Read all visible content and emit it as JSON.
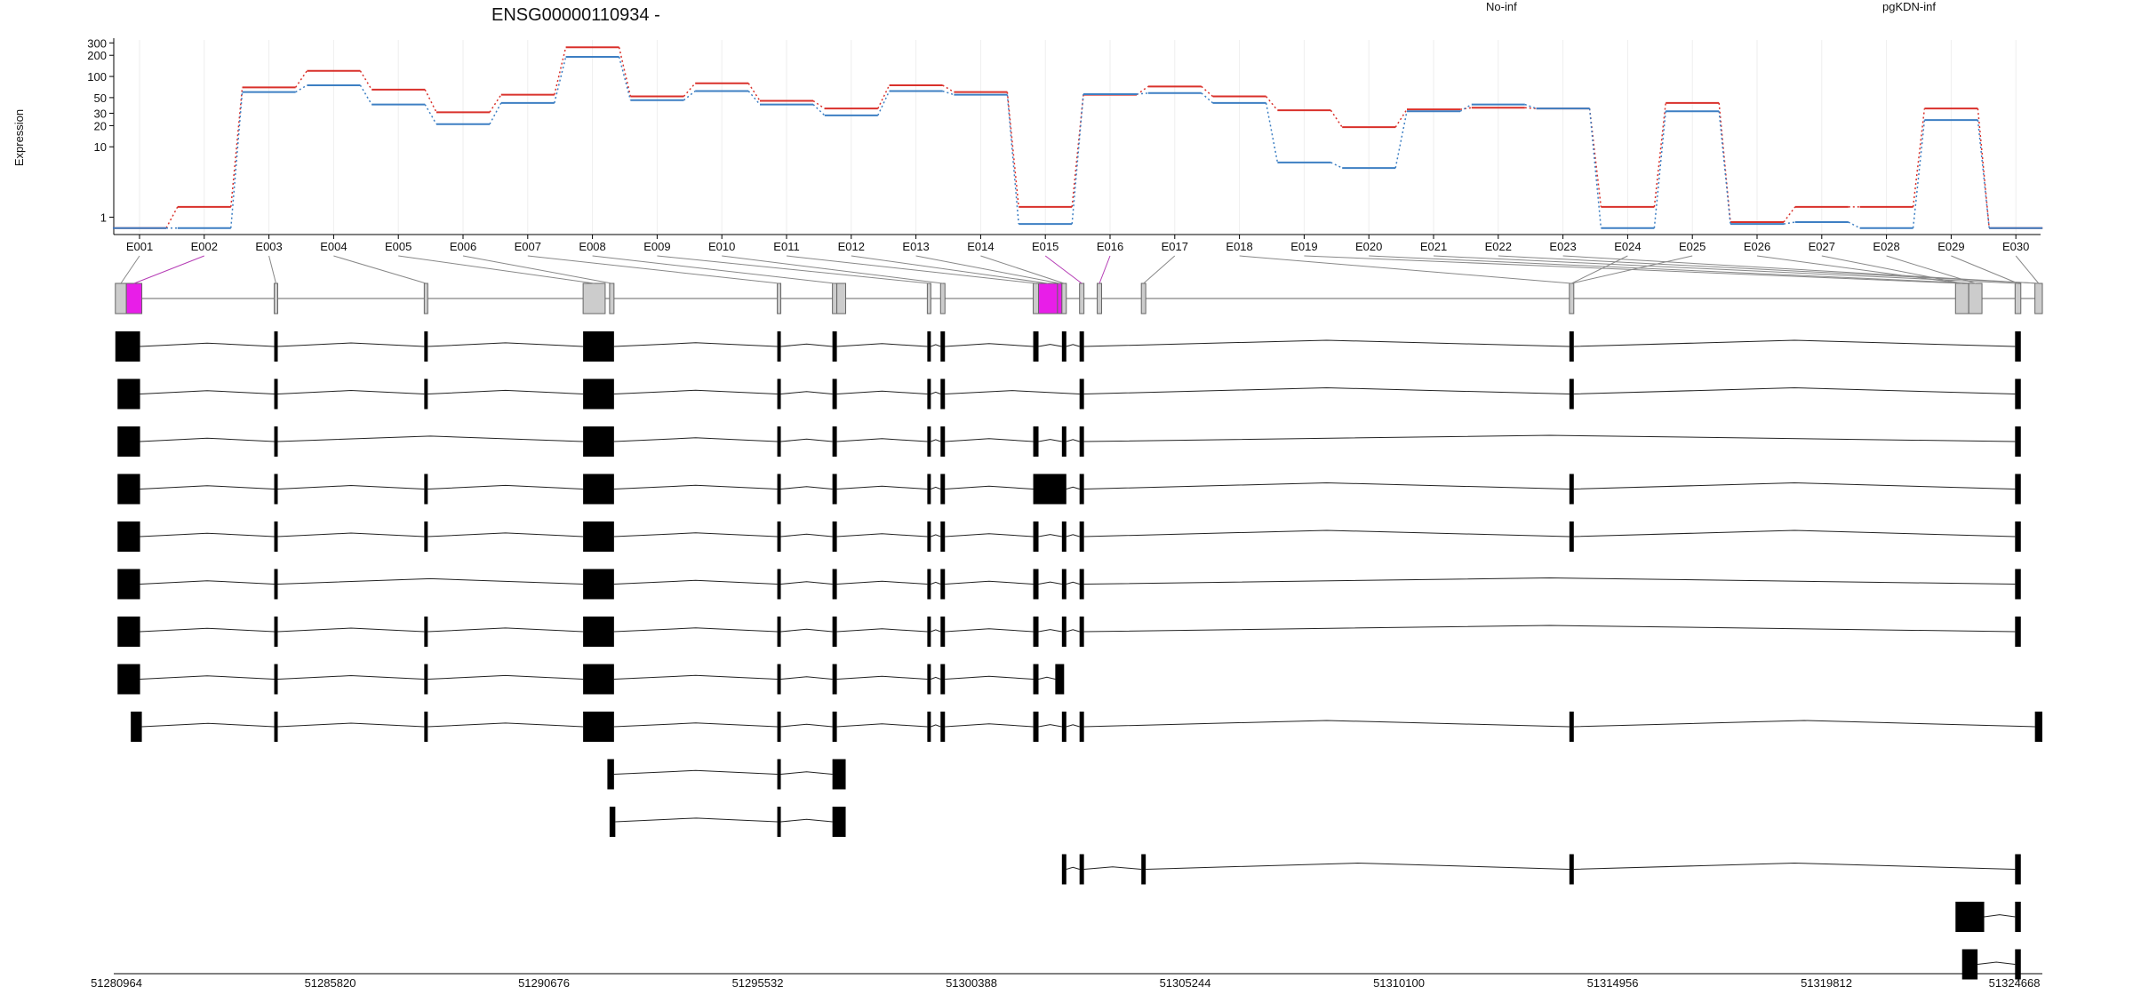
{
  "chart_data": {
    "type": "line",
    "title": "ENSG00000110934 -",
    "ylabel": "Expression",
    "xlabel": "",
    "y_scale": "log",
    "ylim": [
      0.6,
      330
    ],
    "y_ticks": [
      1,
      10,
      20,
      30,
      50,
      100,
      200,
      300
    ],
    "grid": "vertical lines at each exon",
    "legend_position": "top",
    "categories": [
      "E001",
      "E002",
      "E003",
      "E004",
      "E005",
      "E006",
      "E007",
      "E008",
      "E009",
      "E010",
      "E011",
      "E012",
      "E013",
      "E014",
      "E015",
      "E016",
      "E017",
      "E018",
      "E019",
      "E020",
      "E021",
      "E022",
      "E023",
      "E024",
      "E025",
      "E026",
      "E027",
      "E028",
      "E029",
      "E030"
    ],
    "series": [
      {
        "name": "No-inf",
        "color": "#d9312b",
        "values": [
          0.7,
          1.4,
          70,
          120,
          65,
          31,
          55,
          260,
          52,
          80,
          45,
          35,
          75,
          60,
          1.4,
          55,
          72,
          52,
          33,
          19,
          34,
          36,
          35,
          1.4,
          42,
          0.85,
          1.4,
          1.4,
          35,
          0.7
        ]
      },
      {
        "name": "pgKDN-inf",
        "color": "#3d7fc3",
        "values": [
          0.7,
          0.7,
          60,
          75,
          40,
          21,
          42,
          190,
          46,
          62,
          40,
          28,
          62,
          55,
          0.8,
          56,
          58,
          42,
          6,
          5,
          32,
          40,
          35,
          0.7,
          32,
          0.8,
          0.85,
          0.7,
          24,
          0.7
        ]
      }
    ],
    "genomic_axis": {
      "tick_labels": [
        "51280964",
        "51285820",
        "51290676",
        "51295532",
        "51300388",
        "51305244",
        "51310100",
        "51314956",
        "51319812",
        "51324668"
      ]
    },
    "highlighted_exons": [
      "E002",
      "E015",
      "E016"
    ],
    "highlight_color": "#e81ee8"
  }
}
